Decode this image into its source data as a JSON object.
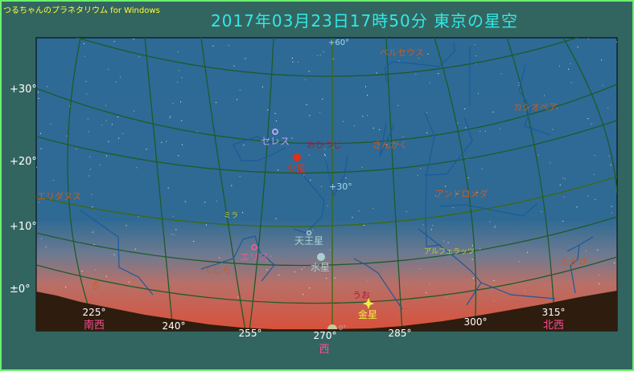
{
  "app_title": "つるちゃんのプラネタリウム for Windows",
  "title": "2017年03月23日17時50分  東京の星空",
  "altitude_labels": [
    "+30°",
    "+20°",
    "+10°",
    "±0°"
  ],
  "grid_labels": {
    "alt60": "+60°",
    "alt30": "+30°",
    "sun_alt": "0°"
  },
  "azimuth_labels": [
    "225°",
    "240°",
    "255°",
    "270°",
    "285°",
    "300°",
    "315°"
  ],
  "compass": {
    "sw": "南西",
    "w": "西",
    "nw": "北西"
  },
  "constellations": [
    "ペルセウス",
    "カシオペア",
    "おひつじ",
    "さんかく",
    "アンドロメダ",
    "エリダヌス",
    "くじら",
    "うお",
    "とかげ",
    "ろ"
  ],
  "stars": [
    "ミラ",
    "アルフェラッツ"
  ],
  "planets": [
    {
      "name": "セレス",
      "color": "#b0a8f0"
    },
    {
      "name": "火星",
      "color": "#e0301c"
    },
    {
      "name": "天王星",
      "color": "#a8d0d0"
    },
    {
      "name": "エリス",
      "color": "#e85a90"
    },
    {
      "name": "水星",
      "color": "#a8d0d0"
    },
    {
      "name": "金星",
      "color": "#f0f040"
    }
  ],
  "colors": {
    "sky": "#2d6a96",
    "horizon_glow": "#d9503a",
    "ground": "#2e1c0e",
    "grid": "#1e5a2a",
    "constellation_line": "#1a5a9a",
    "constellation_name": "#d05a1a"
  }
}
